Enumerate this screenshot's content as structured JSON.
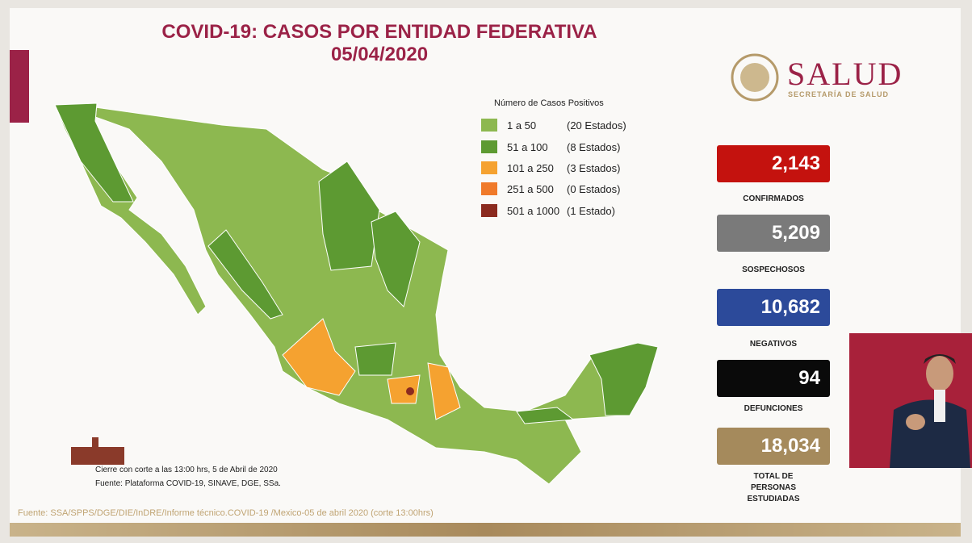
{
  "header": {
    "title": "COVID-19: CASOS POR ENTIDAD FEDERATIVA",
    "date": "05/04/2020"
  },
  "logo": {
    "name": "SALUD",
    "subtitle": "SECRETARÍA DE SALUD"
  },
  "legend": {
    "title": "Número de Casos Positivos",
    "items": [
      {
        "range": "1 a 50",
        "count": "(20 Estados)",
        "color": "#8db850"
      },
      {
        "range": "51 a 100",
        "count": "(8 Estados)",
        "color": "#5d9a32"
      },
      {
        "range": "101 a 250",
        "count": "(3 Estados)",
        "color": "#f5a230"
      },
      {
        "range": "251 a 500",
        "count": "(0 Estados)",
        "color": "#f07a2a"
      },
      {
        "range": "501 a 1000",
        "count": "(1 Estado)",
        "color": "#8b2a1f"
      }
    ]
  },
  "stats": [
    {
      "value": "2,143",
      "label": "CONFIRMADOS",
      "color": "#c4120e"
    },
    {
      "value": "5,209",
      "label": "SOSPECHOSOS",
      "color": "#7a7a7a"
    },
    {
      "value": "10,682",
      "label": "NEGATIVOS",
      "color": "#2c4a9a"
    },
    {
      "value": "94",
      "label": "DEFUNCIONES",
      "color": "#0a0a0a"
    },
    {
      "value": "18,034",
      "label": "TOTAL DE PERSONAS ESTUDIADAS",
      "color": "#a58a5c"
    }
  ],
  "notes": {
    "cut": "Cierre con corte a las 13:00 hrs, 5 de Abril de 2020",
    "source": "Fuente: Plataforma COVID-19, SINAVE, DGE, SSa."
  },
  "footer": {
    "source": "Fuente: SSA/SPPS/DGE/DIE/InDRE/Informe técnico.COVID-19 /Mexico-05 de abril 2020 (corte 13:00hrs)"
  }
}
